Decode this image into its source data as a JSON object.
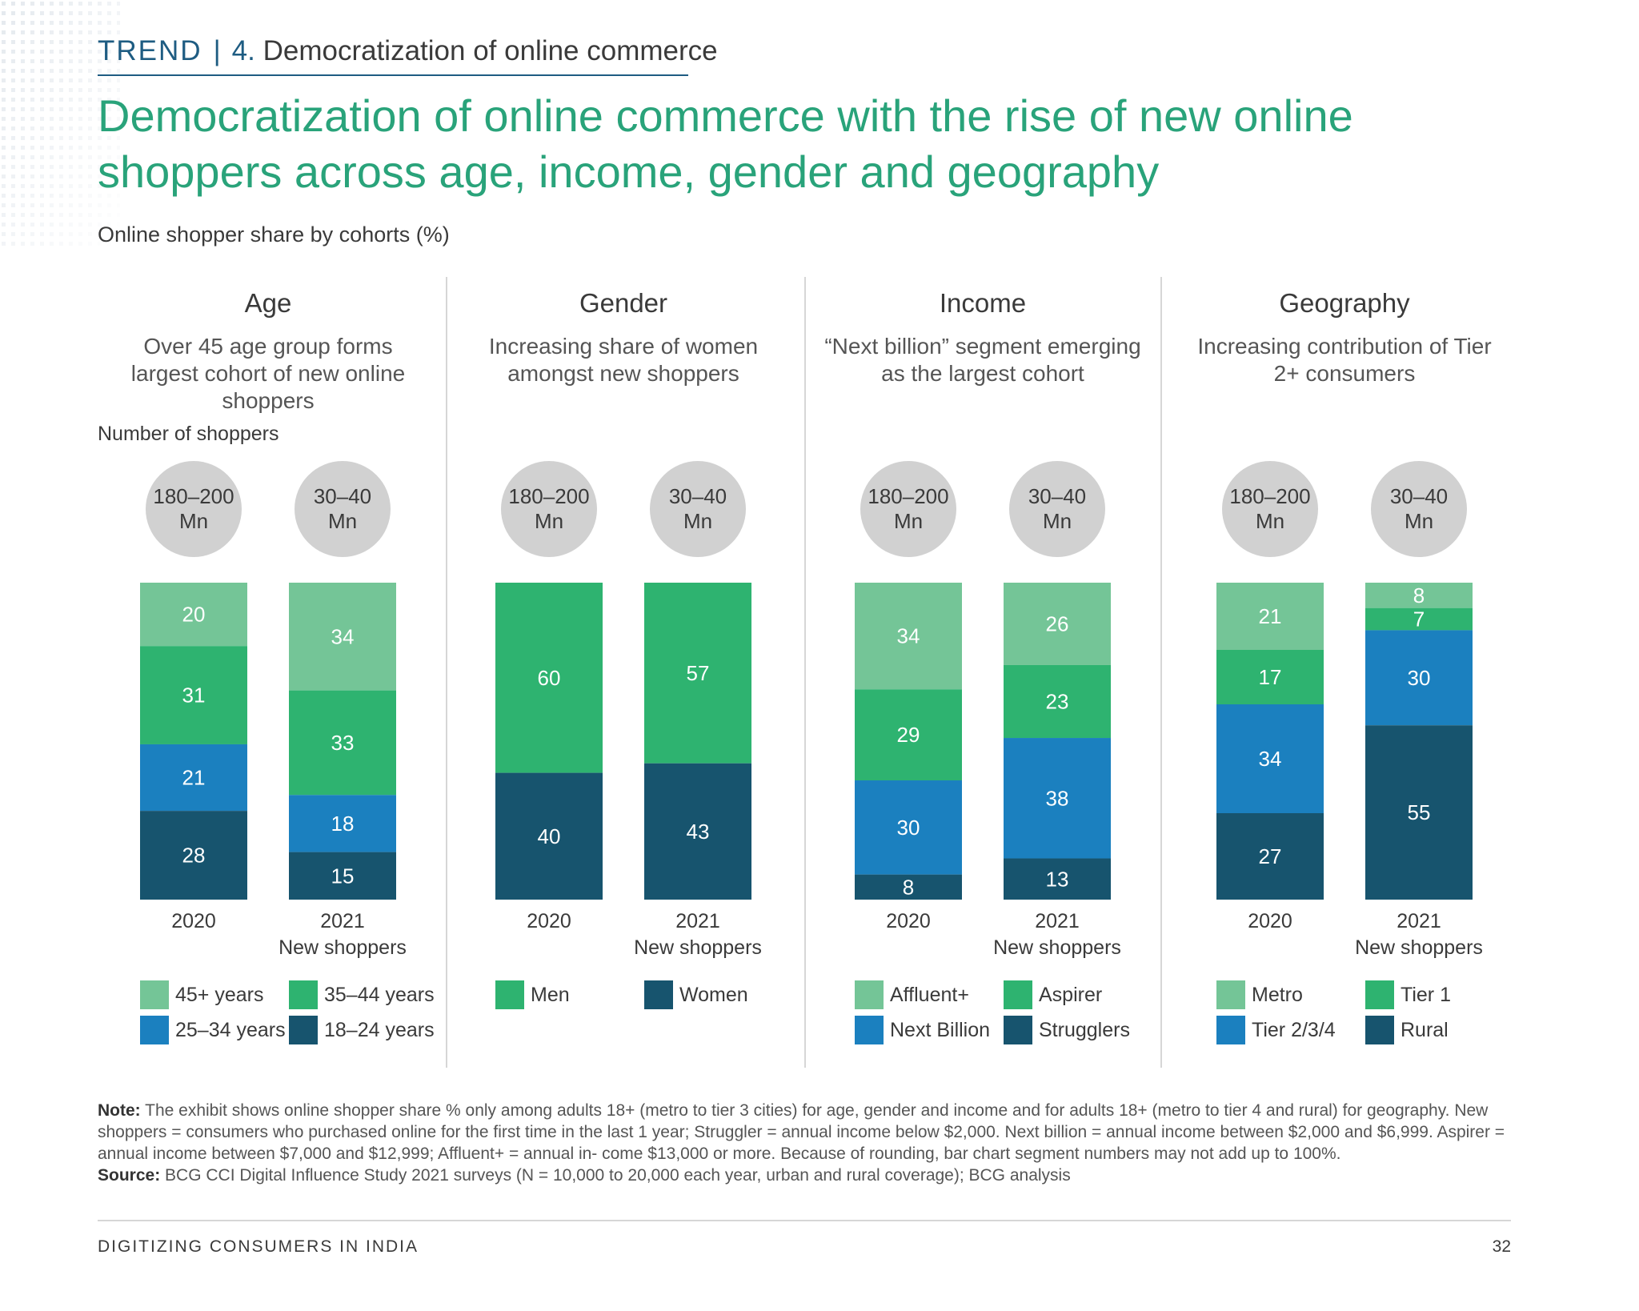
{
  "header": {
    "trend_label": "TREND",
    "separator": "|",
    "trend_number": "4.",
    "trend_title": "Democratization of online commerce"
  },
  "headline": "Democratization of online commerce with the rise of new online shoppers across age, income, gender and geography",
  "subtitle": "Online shopper share by cohorts (%)",
  "number_of_shoppers_label": "Number of shoppers",
  "colors": {
    "light_green": "#74c597",
    "green": "#2eb370",
    "blue": "#1b80bf",
    "dark_navy": "#17546e",
    "circle": "#d1d1d1",
    "headline": "#29a37a",
    "trend": "#1e5c82"
  },
  "chart_data": [
    {
      "type": "bar",
      "stacked": true,
      "title": "Age",
      "description": "Over 45 age group forms largest cohort of new online shoppers",
      "categories": [
        {
          "year": "2020",
          "sublabel": "",
          "shoppers": [
            "180–200",
            "Mn"
          ]
        },
        {
          "year": "2021",
          "sublabel": "New shoppers",
          "shoppers": [
            "30–40",
            "Mn"
          ]
        }
      ],
      "series": [
        {
          "name": "45+ years",
          "color": "#74c597",
          "values": [
            20,
            34
          ]
        },
        {
          "name": "35–44 years",
          "color": "#2eb370",
          "values": [
            31,
            33
          ]
        },
        {
          "name": "25–34 years",
          "color": "#1b80bf",
          "values": [
            21,
            18
          ]
        },
        {
          "name": "18–24 years",
          "color": "#17546e",
          "values": [
            28,
            15
          ]
        }
      ]
    },
    {
      "type": "bar",
      "stacked": true,
      "title": "Gender",
      "description": "Increasing share of women amongst new shoppers",
      "categories": [
        {
          "year": "2020",
          "sublabel": "",
          "shoppers": [
            "180–200",
            "Mn"
          ]
        },
        {
          "year": "2021",
          "sublabel": "New shoppers",
          "shoppers": [
            "30–40",
            "Mn"
          ]
        }
      ],
      "series": [
        {
          "name": "Men",
          "color": "#2eb370",
          "values": [
            60,
            57
          ]
        },
        {
          "name": "Women",
          "color": "#17546e",
          "values": [
            40,
            43
          ]
        }
      ]
    },
    {
      "type": "bar",
      "stacked": true,
      "title": "Income",
      "description": "“Next billion” segment emerging as the largest cohort",
      "categories": [
        {
          "year": "2020",
          "sublabel": "",
          "shoppers": [
            "180–200",
            "Mn"
          ]
        },
        {
          "year": "2021",
          "sublabel": "New shoppers",
          "shoppers": [
            "30–40",
            "Mn"
          ]
        }
      ],
      "series": [
        {
          "name": "Affluent+",
          "color": "#74c597",
          "values": [
            34,
            26
          ]
        },
        {
          "name": "Aspirer",
          "color": "#2eb370",
          "values": [
            29,
            23
          ]
        },
        {
          "name": "Next Billion",
          "color": "#1b80bf",
          "values": [
            30,
            38
          ]
        },
        {
          "name": "Strugglers",
          "color": "#17546e",
          "values": [
            8,
            13
          ]
        }
      ]
    },
    {
      "type": "bar",
      "stacked": true,
      "title": "Geography",
      "description": "Increasing contribution of Tier 2+ consumers",
      "categories": [
        {
          "year": "2020",
          "sublabel": "",
          "shoppers": [
            "180–200",
            "Mn"
          ]
        },
        {
          "year": "2021",
          "sublabel": "New shoppers",
          "shoppers": [
            "30–40",
            "Mn"
          ]
        }
      ],
      "series": [
        {
          "name": "Metro",
          "color": "#74c597",
          "values": [
            21,
            8
          ]
        },
        {
          "name": "Tier 1",
          "color": "#2eb370",
          "values": [
            17,
            7
          ]
        },
        {
          "name": "Tier 2/3/4",
          "color": "#1b80bf",
          "values": [
            34,
            30
          ]
        },
        {
          "name": "Rural",
          "color": "#17546e",
          "values": [
            27,
            55
          ]
        }
      ]
    }
  ],
  "note": {
    "label": "Note:",
    "text": "The exhibit shows online shopper share % only among adults 18+ (metro to tier 3 cities) for age, gender and income and for adults 18+ (metro to tier 4 and rural) for geography. New shoppers = consumers who purchased online for the first time in the last 1 year; Struggler = annual income below $2,000. Next billion = annual income between $2,000 and $6,999. Aspirer = annual income between $7,000 and $12,999; Affluent+ = annual in- come $13,000 or more. Because of rounding, bar chart segment numbers may not add up to 100%.",
    "source_label": "Source:",
    "source_text": "BCG CCI Digital Influence Study 2021 surveys (N = 10,000 to 20,000 each year, urban and rural coverage); BCG analysis"
  },
  "footer": {
    "left": "DIGITIZING CONSUMERS IN INDIA",
    "page": "32"
  }
}
